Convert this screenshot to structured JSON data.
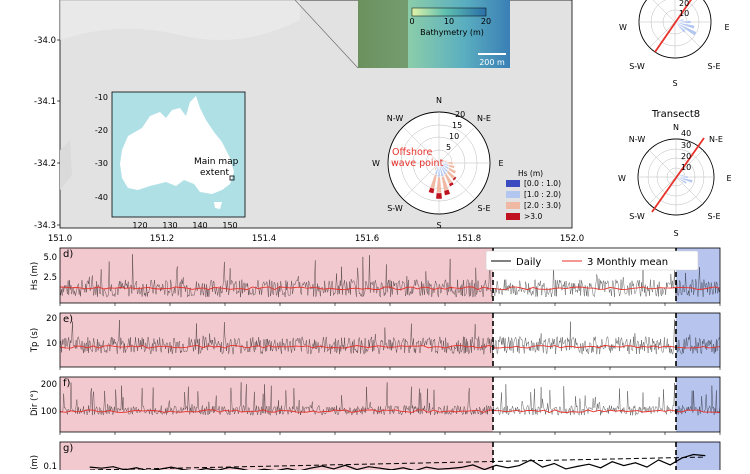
{
  "colors": {
    "pre_shade": "#f2c9cf",
    "post_shade": "#b7c4ee",
    "daily": "#000000",
    "monthly": "#e8312a",
    "map_bg": "#e2e2e2",
    "ocean": "#afe0e5",
    "land": "#ffffff",
    "dir_line": "#e8312a",
    "hs_bins": [
      "#3a4cc0",
      "#b2c6f0",
      "#efb9a4",
      "#c1121f"
    ]
  },
  "map": {
    "x_ticks": [
      "151.0",
      "151.2",
      "151.4",
      "151.6",
      "151.8",
      "152.0"
    ],
    "y_ticks": [
      "-34.0",
      "-34.1",
      "-34.2",
      "-34.3"
    ]
  },
  "inset_australia": {
    "x_ticks": [
      "120",
      "130",
      "140",
      "150"
    ],
    "y_ticks": [
      "-10",
      "-20",
      "-30",
      "-40"
    ],
    "label_line1": "Main map",
    "label_line2": "extent"
  },
  "bathymetry": {
    "ticks": [
      "0",
      "10",
      "20"
    ],
    "label": "Bathymetry (m)",
    "scale_label": "200 m"
  },
  "offshore_rose": {
    "compass": [
      "N",
      "N-E",
      "E",
      "S-E",
      "S",
      "S-W",
      "W",
      "N-W"
    ],
    "rings": [
      "5",
      "10",
      "15",
      "20"
    ],
    "label_line1": "Offshore",
    "label_line2": "wave point"
  },
  "hs_legend": {
    "title": "Hs (m)",
    "entries": [
      "[0.0 : 1.0)",
      "[1.0 : 2.0)",
      "[2.0 : 3.0)",
      ">3.0"
    ]
  },
  "transect_top": {
    "compass": [
      "W",
      "E",
      "S-W",
      "S",
      "S-E"
    ],
    "rings": [
      "20",
      "10"
    ]
  },
  "transect8": {
    "title": "Transect8",
    "compass": [
      "N",
      "N-E",
      "E",
      "S-E",
      "S",
      "S-W",
      "W",
      "N-W"
    ],
    "rings": [
      "40",
      "30",
      "20",
      "10"
    ]
  },
  "panel_d": {
    "letter": "d)",
    "ylabel": "Hs (m)",
    "y_ticks": [
      "5.0",
      "2.5"
    ]
  },
  "panel_e": {
    "letter": "e)",
    "ylabel": "Tp (s)",
    "y_ticks": [
      "20",
      "10"
    ]
  },
  "panel_f": {
    "letter": "f)",
    "ylabel": "Dir (°)",
    "y_ticks": [
      "200",
      "100"
    ]
  },
  "panel_g": {
    "letter": "g)",
    "ylabel": "vel (m)",
    "y_ticks": [
      "0.1"
    ]
  },
  "ts_legend": {
    "daily": "Daily",
    "monthly": "3 Monthly mean"
  },
  "chart_data": [
    {
      "type": "line",
      "panel": "d",
      "ylabel": "Hs (m)",
      "ylim": [
        0,
        5.6
      ],
      "series": [
        {
          "name": "Daily",
          "mean": 1.5,
          "typical_range": [
            0.5,
            3.5
          ],
          "max": 5.1
        },
        {
          "name": "3 Monthly mean",
          "approx_level": 1.5
        }
      ]
    },
    {
      "type": "line",
      "panel": "e",
      "ylabel": "Tp (s)",
      "ylim": [
        2,
        22
      ],
      "series": [
        {
          "name": "Daily",
          "mean": 10,
          "typical_range": [
            5,
            16
          ],
          "max": 20
        },
        {
          "name": "3 Monthly mean",
          "approx_level": 9.5
        }
      ]
    },
    {
      "type": "line",
      "panel": "f",
      "ylabel": "Dir (°)",
      "ylim": [
        0,
        330
      ],
      "series": [
        {
          "name": "Daily",
          "mean": 130,
          "typical_range": [
            80,
            180
          ],
          "max": 300
        },
        {
          "name": "3 Monthly mean",
          "approx_level": 125
        }
      ]
    },
    {
      "type": "line",
      "panel": "g",
      "ylabel": "vel (m)",
      "ylim": [
        0.05,
        0.17
      ],
      "x_index": [
        0,
        1,
        2,
        3,
        4,
        5,
        6,
        7,
        8,
        9,
        10,
        11,
        12,
        13,
        14,
        15,
        16,
        17,
        18,
        19,
        20,
        21,
        22,
        23,
        24,
        25,
        26,
        27,
        28,
        29,
        30,
        31,
        32,
        33,
        34,
        35,
        36,
        37,
        38,
        39,
        40,
        41,
        42,
        43,
        44,
        45,
        46,
        47,
        48,
        49,
        50,
        51,
        52,
        53
      ],
      "values": [
        0.1,
        0.097,
        0.101,
        0.092,
        0.098,
        0.09,
        0.094,
        0.1,
        0.093,
        0.089,
        0.096,
        0.091,
        0.099,
        0.095,
        0.088,
        0.094,
        0.09,
        0.096,
        0.089,
        0.097,
        0.103,
        0.095,
        0.105,
        0.093,
        0.101,
        0.097,
        0.092,
        0.098,
        0.09,
        0.1,
        0.094,
        0.096,
        0.099,
        0.106,
        0.093,
        0.105,
        0.098,
        0.104,
        0.12,
        0.1,
        0.11,
        0.095,
        0.102,
        0.108,
        0.098,
        0.115,
        0.104,
        0.112,
        0.1,
        0.12,
        0.106,
        0.125,
        0.135,
        0.132
      ],
      "trend": [
        0.092,
        0.128
      ]
    }
  ]
}
